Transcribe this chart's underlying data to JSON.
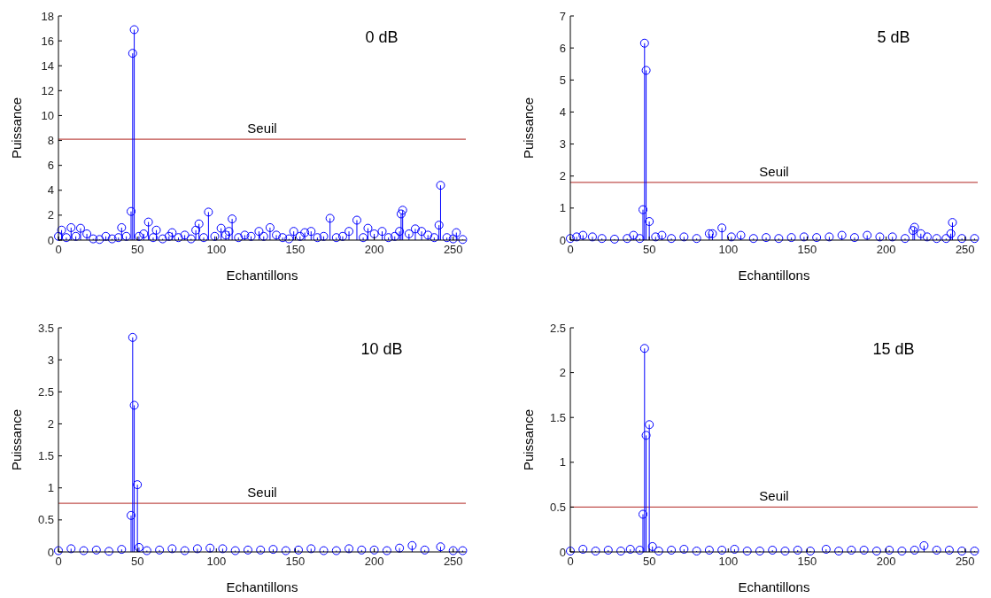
{
  "chart_data": [
    {
      "type": "lollipop",
      "title": "0 dB",
      "xlabel": "Echantillons",
      "ylabel": "Puissance",
      "color": "#0000ff",
      "marker": "circle",
      "xlim": [
        0,
        258
      ],
      "xticks": [
        0,
        50,
        100,
        150,
        200,
        250
      ],
      "ylim": [
        0,
        18
      ],
      "yticks": [
        0,
        2,
        4,
        6,
        8,
        10,
        12,
        14,
        16,
        18
      ],
      "ref_lines": [
        {
          "axis": "y",
          "value": 8.1,
          "label": "Seuil",
          "color": "#c0504d"
        }
      ],
      "x": [
        0,
        2,
        5,
        8,
        11,
        14,
        18,
        22,
        26,
        30,
        34,
        38,
        40,
        43,
        46,
        47,
        48,
        51,
        54,
        57,
        60,
        62,
        66,
        70,
        72,
        76,
        80,
        84,
        87,
        89,
        92,
        95,
        99,
        103,
        106,
        108,
        110,
        114,
        118,
        122,
        127,
        130,
        134,
        138,
        142,
        146,
        149,
        153,
        156,
        160,
        164,
        168,
        172,
        176,
        180,
        184,
        189,
        193,
        196,
        200,
        205,
        209,
        213,
        216,
        217,
        218,
        222,
        226,
        230,
        234,
        238,
        241,
        242,
        246,
        250,
        252,
        256
      ],
      "values": [
        0.3,
        0.8,
        0.2,
        1.0,
        0.3,
        0.95,
        0.5,
        0.1,
        0.05,
        0.3,
        0.1,
        0.2,
        1.0,
        0.3,
        2.3,
        15,
        16.9,
        0.3,
        0.5,
        1.45,
        0.2,
        0.8,
        0.1,
        0.3,
        0.6,
        0.2,
        0.4,
        0.1,
        0.8,
        1.3,
        0.2,
        2.25,
        0.3,
        0.95,
        0.4,
        0.7,
        1.7,
        0.2,
        0.4,
        0.3,
        0.7,
        0.3,
        1.0,
        0.4,
        0.2,
        0.1,
        0.7,
        0.3,
        0.6,
        0.7,
        0.2,
        0.3,
        1.75,
        0.2,
        0.3,
        0.7,
        1.6,
        0.2,
        0.95,
        0.5,
        0.7,
        0.2,
        0.3,
        0.7,
        2.1,
        2.4,
        0.5,
        0.9,
        0.7,
        0.4,
        0.2,
        1.2,
        4.4,
        0.2,
        0.1,
        0.6,
        0.05
      ]
    },
    {
      "type": "lollipop",
      "title": "5 dB",
      "xlabel": "Echantillons",
      "ylabel": "Puissance",
      "color": "#0000ff",
      "marker": "circle",
      "xlim": [
        0,
        258
      ],
      "xticks": [
        0,
        50,
        100,
        150,
        200,
        250
      ],
      "ylim": [
        0,
        7
      ],
      "yticks": [
        0,
        1,
        2,
        3,
        4,
        5,
        6,
        7
      ],
      "ref_lines": [
        {
          "axis": "y",
          "value": 1.8,
          "label": "Seuil",
          "color": "#c0504d"
        }
      ],
      "x": [
        0,
        4,
        8,
        14,
        20,
        28,
        36,
        40,
        44,
        46,
        47,
        48,
        50,
        54,
        58,
        64,
        72,
        80,
        88,
        90,
        96,
        102,
        108,
        116,
        124,
        132,
        140,
        148,
        156,
        164,
        172,
        180,
        188,
        196,
        204,
        212,
        217,
        218,
        222,
        226,
        232,
        238,
        241,
        242,
        248,
        256
      ],
      "values": [
        0.05,
        0.1,
        0.15,
        0.1,
        0.05,
        0.03,
        0.05,
        0.15,
        0.05,
        0.95,
        6.15,
        5.3,
        0.58,
        0.1,
        0.15,
        0.05,
        0.1,
        0.05,
        0.2,
        0.2,
        0.38,
        0.1,
        0.15,
        0.05,
        0.08,
        0.05,
        0.08,
        0.1,
        0.08,
        0.1,
        0.15,
        0.08,
        0.15,
        0.1,
        0.1,
        0.05,
        0.3,
        0.4,
        0.2,
        0.1,
        0.05,
        0.05,
        0.2,
        0.55,
        0.05,
        0.05
      ]
    },
    {
      "type": "lollipop",
      "title": "10 dB",
      "xlabel": "Echantillons",
      "ylabel": "Puissance",
      "color": "#0000ff",
      "marker": "circle",
      "xlim": [
        0,
        258
      ],
      "xticks": [
        0,
        50,
        100,
        150,
        200,
        250
      ],
      "ylim": [
        0,
        3.5
      ],
      "yticks": [
        0,
        0.5,
        1,
        1.5,
        2,
        2.5,
        3,
        3.5
      ],
      "ref_lines": [
        {
          "axis": "y",
          "value": 0.76,
          "label": "Seuil",
          "color": "#c0504d"
        }
      ],
      "x": [
        0,
        8,
        16,
        24,
        32,
        40,
        46,
        47,
        48,
        50,
        51,
        56,
        64,
        72,
        80,
        88,
        96,
        104,
        112,
        120,
        128,
        136,
        144,
        152,
        160,
        168,
        176,
        184,
        192,
        200,
        208,
        216,
        224,
        232,
        242,
        250,
        256
      ],
      "values": [
        0.02,
        0.05,
        0.02,
        0.03,
        0.01,
        0.04,
        0.57,
        3.35,
        2.29,
        1.05,
        0.07,
        0.02,
        0.03,
        0.05,
        0.02,
        0.05,
        0.06,
        0.05,
        0.02,
        0.03,
        0.03,
        0.04,
        0.02,
        0.03,
        0.05,
        0.02,
        0.02,
        0.05,
        0.03,
        0.03,
        0.02,
        0.06,
        0.1,
        0.03,
        0.08,
        0.02,
        0.02
      ]
    },
    {
      "type": "lollipop",
      "title": "15 dB",
      "xlabel": "Echantillons",
      "ylabel": "Puissance",
      "color": "#0000ff",
      "marker": "circle",
      "xlim": [
        0,
        258
      ],
      "xticks": [
        0,
        50,
        100,
        150,
        200,
        250
      ],
      "ylim": [
        0,
        2.5
      ],
      "yticks": [
        0,
        0.5,
        1,
        1.5,
        2,
        2.5
      ],
      "ref_lines": [
        {
          "axis": "y",
          "value": 0.5,
          "label": "Seuil",
          "color": "#c0504d"
        }
      ],
      "x": [
        0,
        8,
        16,
        24,
        32,
        38,
        44,
        46,
        47,
        48,
        50,
        52,
        56,
        64,
        72,
        80,
        88,
        96,
        104,
        112,
        120,
        128,
        136,
        144,
        152,
        162,
        170,
        178,
        186,
        194,
        202,
        210,
        218,
        224,
        232,
        240,
        248,
        256
      ],
      "values": [
        0.01,
        0.03,
        0.01,
        0.02,
        0.01,
        0.03,
        0.02,
        0.42,
        2.27,
        1.3,
        1.42,
        0.06,
        0.01,
        0.02,
        0.03,
        0.01,
        0.02,
        0.02,
        0.03,
        0.01,
        0.01,
        0.02,
        0.01,
        0.02,
        0.01,
        0.03,
        0.01,
        0.02,
        0.02,
        0.01,
        0.02,
        0.01,
        0.02,
        0.07,
        0.02,
        0.02,
        0.01,
        0.01
      ]
    }
  ]
}
